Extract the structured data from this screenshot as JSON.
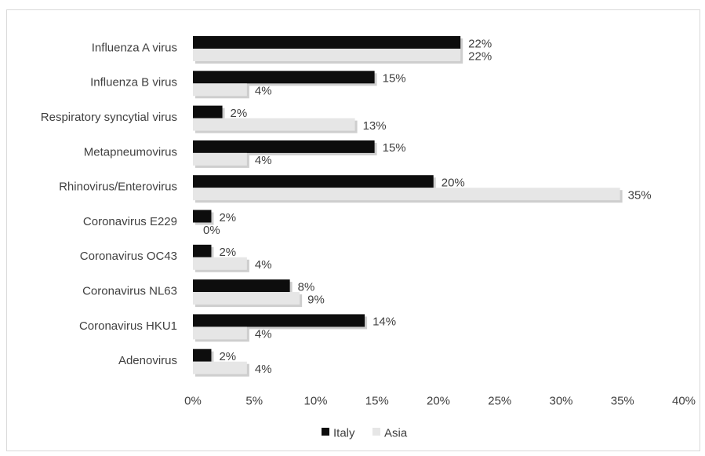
{
  "chart_data": {
    "type": "bar",
    "orientation": "horizontal",
    "title": "",
    "xlabel": "",
    "ylabel": "",
    "categories": [
      "Influenza A virus",
      "Influenza B virus",
      "Respiratory syncytial virus",
      "Metapneumovirus",
      "Rhinovirus/Enterovirus",
      "Coronavirus E229",
      "Coronavirus OC43",
      "Coronavirus NL63",
      "Coronavirus HKU1",
      "Adenovirus"
    ],
    "series": [
      {
        "name": "Italy",
        "color": "#0d0d0d",
        "values": [
          22,
          15,
          2,
          15,
          20,
          2,
          2,
          8,
          14,
          2
        ],
        "labels": [
          "22%",
          "15%",
          "2%",
          "15%",
          "20%",
          "2%",
          "2%",
          "8%",
          "14%",
          "2%"
        ],
        "visual_values": [
          21.8,
          14.8,
          2.4,
          14.8,
          19.6,
          1.5,
          1.5,
          7.9,
          14.0,
          1.5
        ]
      },
      {
        "name": "Asia",
        "color": "#e6e6e6",
        "values": [
          22,
          4,
          13,
          4,
          35,
          0,
          4,
          9,
          4,
          4
        ],
        "labels": [
          "22%",
          "4%",
          "13%",
          "4%",
          "35%",
          "0%",
          "4%",
          "9%",
          "4%",
          "4%"
        ],
        "visual_values": [
          21.8,
          4.4,
          13.2,
          4.4,
          34.8,
          0.0,
          4.4,
          8.7,
          4.4,
          4.4
        ]
      }
    ],
    "xlim": [
      0,
      40
    ],
    "xticks": [
      "0%",
      "5%",
      "10%",
      "15%",
      "20%",
      "25%",
      "30%",
      "35%",
      "40%"
    ],
    "grid": false,
    "legend_position": "bottom"
  }
}
